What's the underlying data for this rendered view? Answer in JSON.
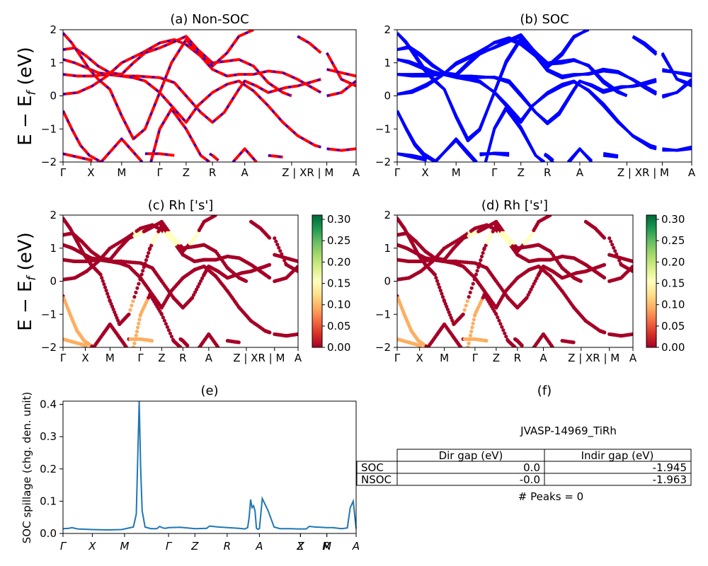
{
  "figure": {
    "ylabel_bands": "E − E_f (eV)",
    "colorbar_ticks": [
      "0.00",
      "0.05",
      "0.10",
      "0.15",
      "0.20",
      "0.25",
      "0.30"
    ],
    "colors": {
      "nsoc": "#ff0000",
      "soc": "#0000ff",
      "spillage": "#1f77b4"
    }
  },
  "chart_data": [
    {
      "id": "a",
      "type": "line",
      "title": "(a) Non-SOC",
      "ylabel": "E − E_f (eV)",
      "ylim": [
        -2,
        2
      ],
      "yticks": [
        "2",
        "1",
        "0",
        "−1",
        "−2"
      ],
      "xticks": [
        "Γ",
        "X",
        "M",
        "Γ",
        "Z",
        "R",
        "A",
        "Z | XR | M",
        "A"
      ],
      "xpos": [
        0,
        0.095,
        0.2,
        0.33,
        0.42,
        0.51,
        0.62,
        0.78,
        0.9,
        1.0
      ],
      "series": [
        {
          "values": [
            [
              0,
              0.05
            ],
            [
              0.05,
              0.1
            ],
            [
              0.1,
              0.3
            ],
            [
              0.15,
              0.6
            ],
            [
              0.2,
              1.0
            ],
            [
              0.27,
              1.3
            ],
            [
              0.33,
              1.6
            ],
            [
              0.38,
              1.7
            ],
            [
              0.42,
              1.55
            ],
            [
              0.47,
              1.2
            ],
            [
              0.51,
              0.8
            ],
            [
              0.56,
              0.6
            ],
            [
              0.6,
              0.65
            ],
            [
              0.65,
              0.65
            ],
            [
              0.7,
              0.75
            ],
            [
              0.75,
              0.7
            ],
            [
              0.8,
              0.5
            ],
            [
              0.84,
              0.3
            ],
            [
              0.88,
              0.1
            ]
          ]
        },
        {
          "values": [
            [
              0,
              0.65
            ],
            [
              0.05,
              0.6
            ],
            [
              0.1,
              0.6
            ],
            [
              0.15,
              0.65
            ],
            [
              0.2,
              0.6
            ],
            [
              0.25,
              0.6
            ],
            [
              0.33,
              0.55
            ],
            [
              0.38,
              0.4
            ],
            [
              0.42,
              0.0
            ],
            [
              0.47,
              -0.5
            ],
            [
              0.51,
              -0.8
            ],
            [
              0.55,
              -0.5
            ],
            [
              0.6,
              0.2
            ],
            [
              0.62,
              0.45
            ],
            [
              0.66,
              0.3
            ],
            [
              0.7,
              0.1
            ],
            [
              0.76,
              0.25
            ],
            [
              0.8,
              0.3
            ],
            [
              0.84,
              0.4
            ],
            [
              0.88,
              0.5
            ]
          ]
        },
        {
          "values": [
            [
              0,
              1.1
            ],
            [
              0.04,
              1.0
            ],
            [
              0.08,
              0.85
            ],
            [
              0.12,
              0.7
            ],
            [
              0.16,
              0.65
            ],
            [
              0.2,
              0.6
            ],
            [
              0.24,
              0.55
            ],
            [
              0.28,
              0.45
            ],
            [
              0.33,
              0.1
            ],
            [
              0.37,
              -0.3
            ],
            [
              0.42,
              -0.8
            ],
            [
              0.46,
              -0.3
            ],
            [
              0.51,
              0.1
            ],
            [
              0.56,
              0.35
            ],
            [
              0.6,
              0.45
            ],
            [
              0.65,
              0.15
            ],
            [
              0.7,
              -0.3
            ],
            [
              0.75,
              -0.8
            ],
            [
              0.8,
              -1.2
            ],
            [
              0.86,
              -1.5
            ],
            [
              0.88,
              -1.55
            ]
          ]
        },
        {
          "values": [
            [
              0,
              1.4
            ],
            [
              0.04,
              1.45
            ],
            [
              0.08,
              1.2
            ],
            [
              0.12,
              0.9
            ],
            [
              0.16,
              0.7
            ],
            [
              0.2,
              0.65
            ],
            [
              0.24,
              1.0
            ],
            [
              0.28,
              1.3
            ],
            [
              0.33,
              1.45
            ],
            [
              0.37,
              1.6
            ],
            [
              0.42,
              1.8
            ],
            [
              0.46,
              1.4
            ],
            [
              0.51,
              1.0
            ],
            [
              0.56,
              1.05
            ],
            [
              0.6,
              1.1
            ],
            [
              0.65,
              0.9
            ],
            [
              0.7,
              0.4
            ],
            [
              0.75,
              0.1
            ],
            [
              0.78,
              0.0
            ]
          ]
        },
        {
          "values": [
            [
              0,
              1.9
            ],
            [
              0.03,
              1.6
            ],
            [
              0.06,
              1.2
            ],
            [
              0.09,
              0.8
            ],
            [
              0.12,
              0.5
            ],
            [
              0.16,
              0.2
            ],
            [
              0.2,
              -0.6
            ],
            [
              0.24,
              -1.3
            ],
            [
              0.28,
              -1.0
            ],
            [
              0.33,
              0.1
            ],
            [
              0.37,
              1.0
            ],
            [
              0.42,
              1.7
            ],
            [
              0.46,
              1.3
            ],
            [
              0.51,
              0.9
            ],
            [
              0.56,
              1.3
            ],
            [
              0.6,
              1.8
            ],
            [
              0.65,
              2.0
            ]
          ]
        },
        {
          "values": [
            [
              0,
              -0.45
            ],
            [
              0.03,
              -1.0
            ],
            [
              0.06,
              -1.5
            ],
            [
              0.09,
              -1.8
            ],
            [
              0.13,
              -2.0
            ]
          ]
        },
        {
          "values": [
            [
              0.13,
              -2.0
            ],
            [
              0.17,
              -1.6
            ],
            [
              0.2,
              -1.3
            ],
            [
              0.24,
              -1.7
            ],
            [
              0.27,
              -2.0
            ]
          ]
        },
        {
          "values": [
            [
              0.3,
              -2.0
            ],
            [
              0.33,
              -1.0
            ],
            [
              0.37,
              -0.4
            ],
            [
              0.42,
              -1.0
            ],
            [
              0.47,
              -1.8
            ],
            [
              0.5,
              -2.0
            ]
          ]
        },
        {
          "values": [
            [
              0,
              -1.75
            ],
            [
              0.05,
              -1.85
            ],
            [
              0.1,
              -1.95
            ]
          ]
        },
        {
          "values": [
            [
              0.28,
              -1.75
            ],
            [
              0.33,
              -1.75
            ],
            [
              0.38,
              -1.8
            ]
          ]
        },
        {
          "values": [
            [
              0.5,
              -1.75
            ],
            [
              0.51,
              -1.8
            ],
            [
              0.53,
              -1.95
            ]
          ]
        },
        {
          "values": [
            [
              0.58,
              -2.0
            ],
            [
              0.62,
              -1.6
            ],
            [
              0.66,
              -2.0
            ]
          ]
        },
        {
          "values": [
            [
              0.7,
              -1.8
            ],
            [
              0.75,
              -1.85
            ]
          ]
        },
        {
          "values": [
            [
              0.8,
              1.8
            ],
            [
              0.84,
              1.6
            ],
            [
              0.88,
              1.3
            ]
          ]
        },
        {
          "values": [
            [
              0.9,
              1.3
            ],
            [
              0.95,
              0.5
            ],
            [
              1.0,
              0.3
            ]
          ]
        },
        {
          "values": [
            [
              0.9,
              0.0
            ],
            [
              0.95,
              0.1
            ],
            [
              1.0,
              0.45
            ]
          ]
        },
        {
          "values": [
            [
              0.9,
              -1.6
            ],
            [
              0.95,
              -1.65
            ],
            [
              1.0,
              -1.6
            ]
          ]
        },
        {
          "values": [
            [
              0.9,
              0.8
            ],
            [
              0.95,
              0.7
            ],
            [
              1.0,
              0.6
            ]
          ]
        }
      ]
    },
    {
      "id": "b",
      "type": "line",
      "title": "(b) SOC",
      "ylim": [
        -2,
        2
      ],
      "yticks": [
        "2",
        "1",
        "0",
        "−1",
        "−2"
      ],
      "xticks": [
        "Γ",
        "X",
        "M",
        "Γ",
        "Z",
        "R",
        "A",
        "Z | XR | M",
        "A"
      ],
      "xpos": [
        0,
        0.095,
        0.2,
        0.33,
        0.42,
        0.51,
        0.62,
        0.78,
        0.9,
        1.0
      ]
    },
    {
      "id": "c",
      "type": "scatter",
      "title": "(c)  Rh ['s']",
      "ylabel": "E − E_f (eV)",
      "ylim": [
        -2,
        2
      ],
      "yticks": [
        "2",
        "1",
        "0",
        "−1",
        "−2"
      ],
      "xticks": [
        "Γ",
        "X",
        "M",
        "Γ",
        "Z",
        "R",
        "A",
        "Z | XR | M",
        "A"
      ],
      "xpos": [
        0,
        0.095,
        0.2,
        0.33,
        0.42,
        0.51,
        0.62,
        0.78,
        0.9,
        1.0
      ],
      "colorbar": {
        "min": 0,
        "max": 0.3
      }
    },
    {
      "id": "d",
      "type": "scatter",
      "title": "(d) Rh ['s']",
      "ylim": [
        -2,
        2
      ],
      "yticks": [
        "2",
        "1",
        "0",
        "−1",
        "−2"
      ],
      "xticks": [
        "Γ",
        "X",
        "M",
        "Γ",
        "Z",
        "R",
        "A",
        "Z | XR | M",
        "A"
      ],
      "xpos": [
        0,
        0.095,
        0.2,
        0.33,
        0.42,
        0.51,
        0.62,
        0.78,
        0.9,
        1.0
      ],
      "colorbar": {
        "min": 0,
        "max": 0.3
      }
    },
    {
      "id": "e",
      "type": "line",
      "title": "(e)",
      "ylabel": "SOC spillage (chg. den. unit)",
      "ylim": [
        0,
        0.41
      ],
      "yticks": [
        "0.4",
        "0.3",
        "0.2",
        "0.1",
        "0.0"
      ],
      "xticks": [
        "Γ",
        "X",
        "M",
        "Γ",
        "Z",
        "R",
        "A",
        "Z",
        "X",
        "R",
        "M",
        "A"
      ],
      "xpos": [
        0,
        0.1,
        0.21,
        0.36,
        0.45,
        0.56,
        0.67,
        0.81,
        0.81,
        0.9,
        0.9,
        1.0
      ],
      "x": [
        0,
        0.02,
        0.03,
        0.05,
        0.1,
        0.15,
        0.2,
        0.24,
        0.25,
        0.26,
        0.265,
        0.27,
        0.28,
        0.3,
        0.32,
        0.33,
        0.34,
        0.35,
        0.36,
        0.4,
        0.45,
        0.49,
        0.5,
        0.51,
        0.53,
        0.6,
        0.62,
        0.63,
        0.635,
        0.64,
        0.645,
        0.65,
        0.655,
        0.66,
        0.665,
        0.67,
        0.68,
        0.7,
        0.72,
        0.74,
        0.78,
        0.8,
        0.83,
        0.84,
        0.86,
        0.9,
        0.92,
        0.95,
        0.97,
        0.98,
        0.99,
        1.0
      ],
      "values": [
        0.015,
        0.016,
        0.018,
        0.014,
        0.012,
        0.011,
        0.012,
        0.02,
        0.06,
        0.41,
        0.2,
        0.07,
        0.02,
        0.015,
        0.015,
        0.022,
        0.017,
        0.016,
        0.018,
        0.019,
        0.015,
        0.016,
        0.023,
        0.022,
        0.02,
        0.016,
        0.014,
        0.018,
        0.05,
        0.105,
        0.08,
        0.086,
        0.07,
        0.016,
        0.013,
        0.015,
        0.108,
        0.07,
        0.02,
        0.015,
        0.015,
        0.014,
        0.014,
        0.022,
        0.02,
        0.018,
        0.018,
        0.015,
        0.017,
        0.08,
        0.1,
        0.015
      ]
    },
    {
      "id": "f",
      "type": "table",
      "title": "(f)",
      "caption": "JVASP-14969_TiRh",
      "columns": [
        "Dir gap (eV)",
        "Indir gap (eV)"
      ],
      "rows": [
        {
          "label": "SOC",
          "values": [
            "0.0",
            "-1.945"
          ]
        },
        {
          "label": "NSOC",
          "values": [
            "-0.0",
            "-1.963"
          ]
        }
      ],
      "footer": "# Peaks = 0"
    }
  ]
}
